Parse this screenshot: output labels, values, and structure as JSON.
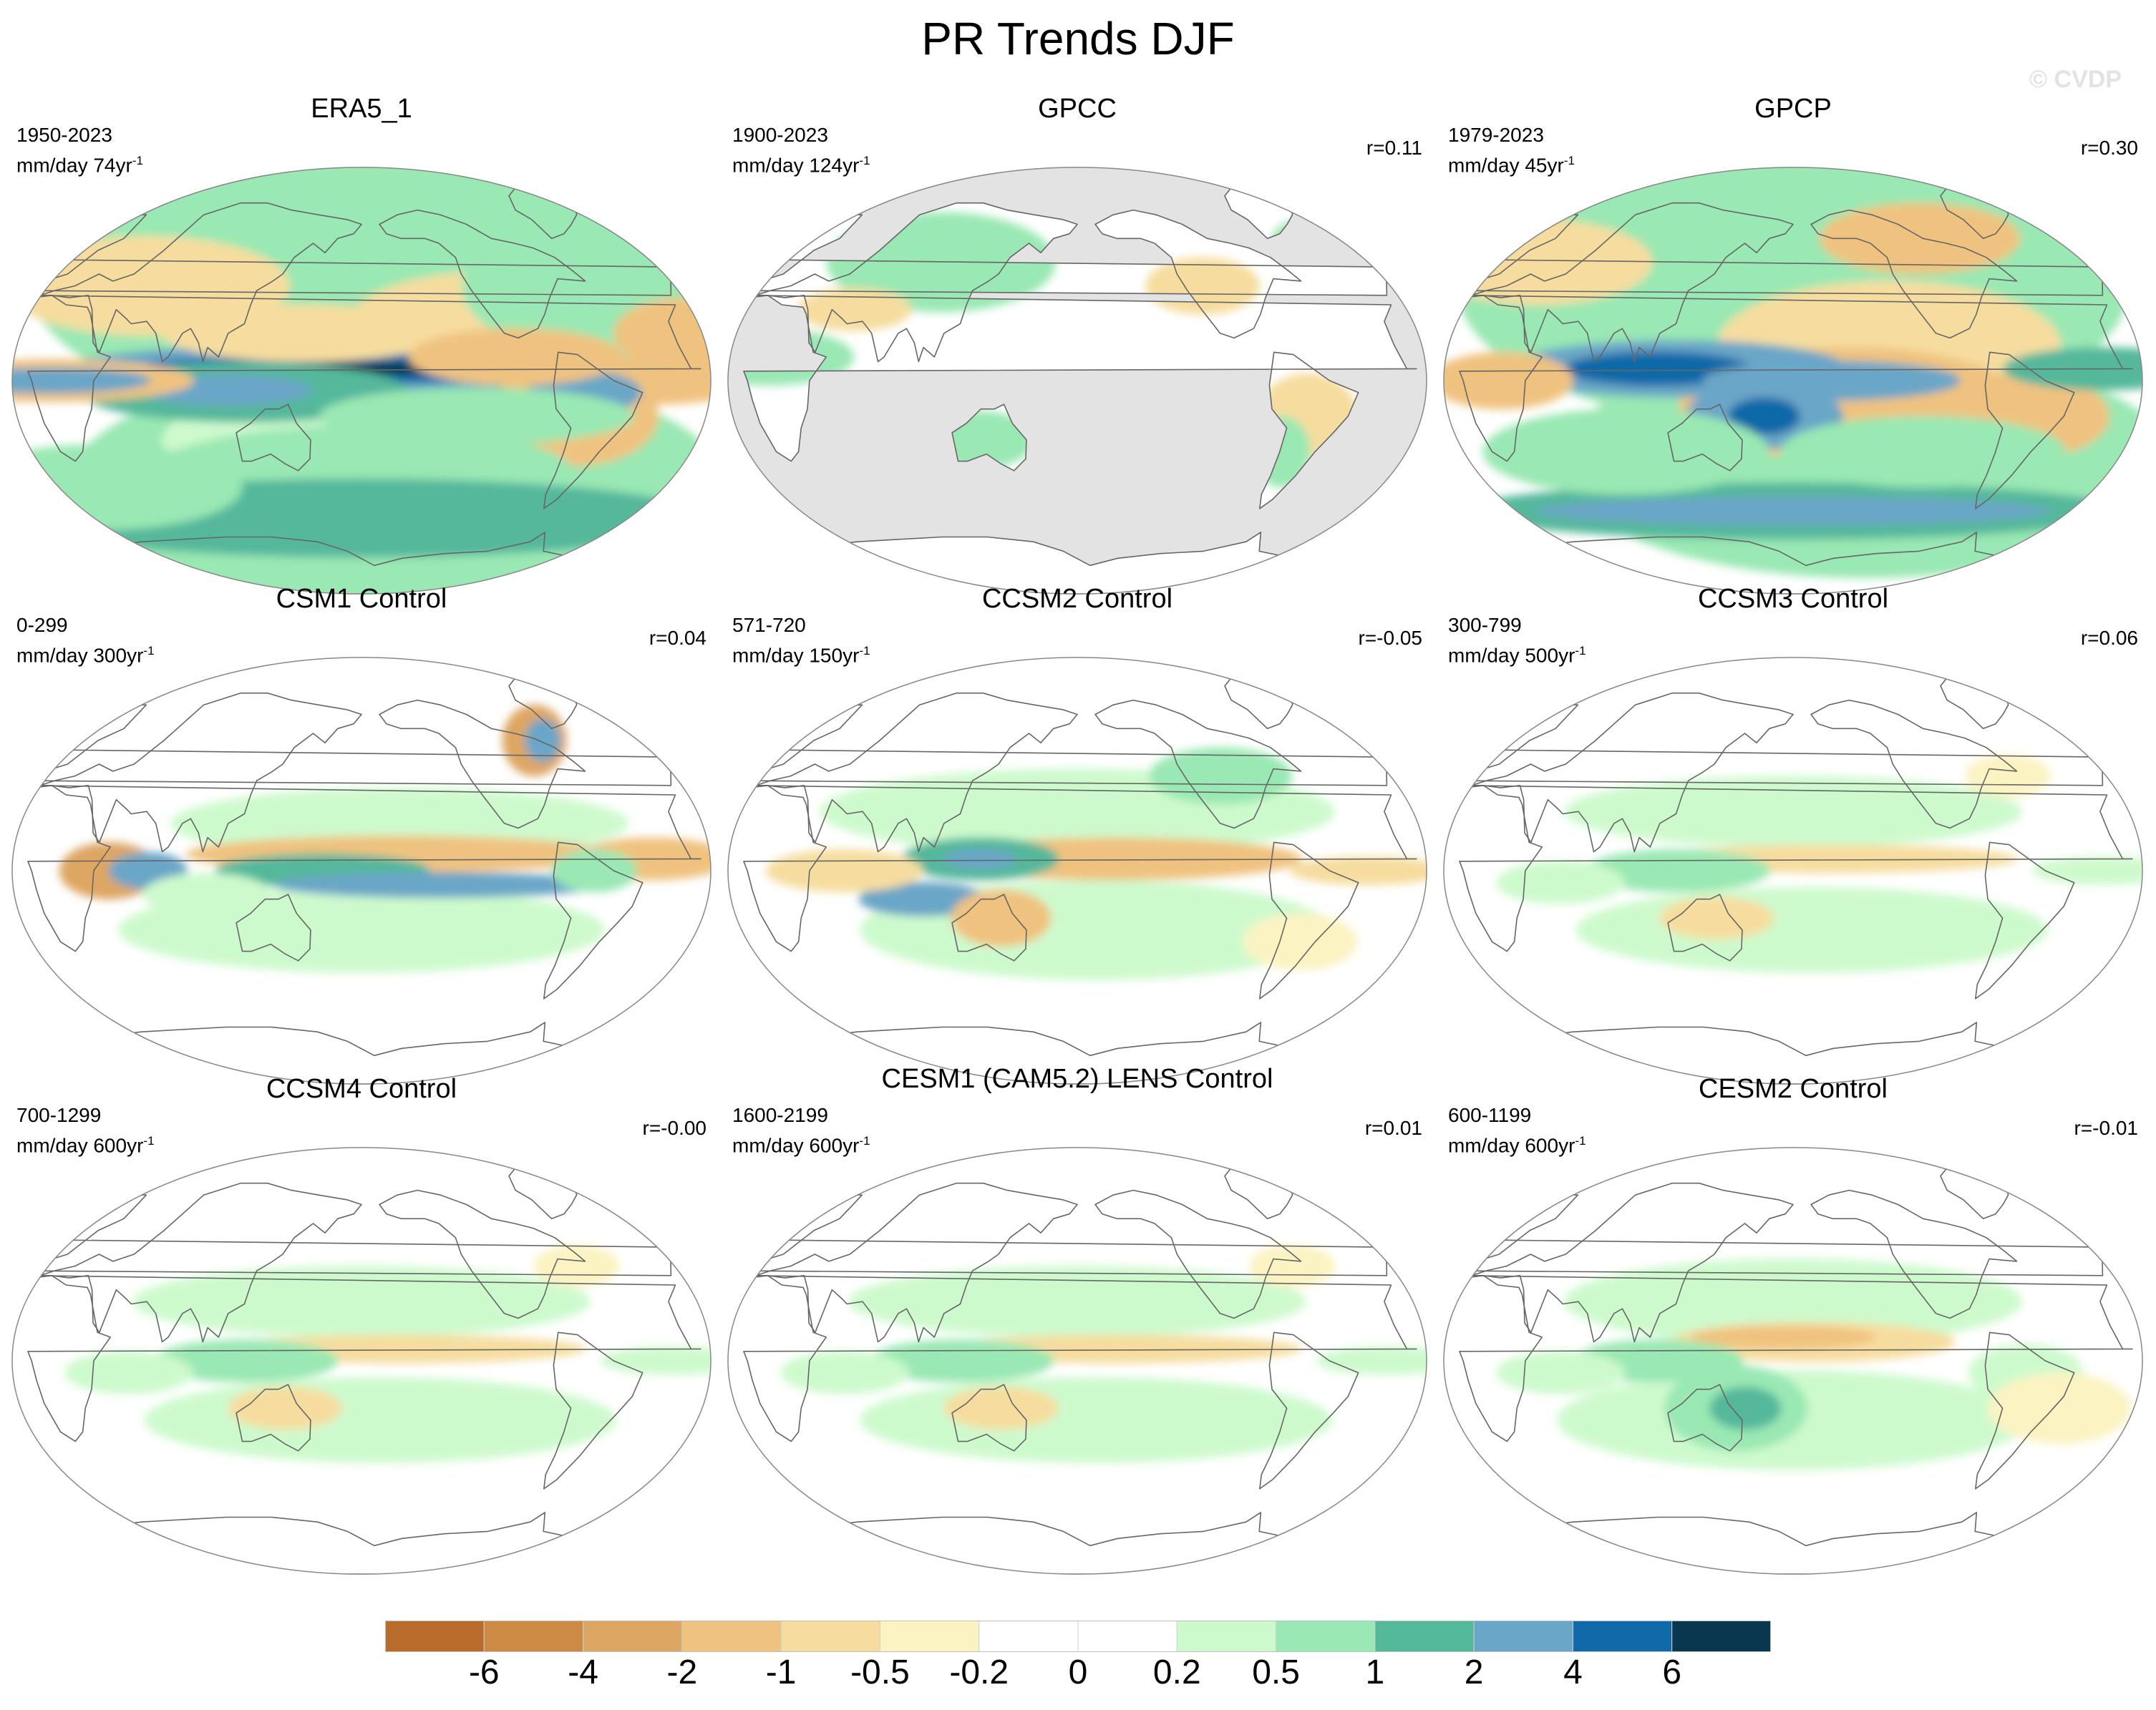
{
  "title": "PR Trends DJF",
  "watermark": "© CVDP",
  "panels": [
    {
      "title": "ERA5_1",
      "years": "1950-2023",
      "units": "mm/day 74yr",
      "units_exp": "-1",
      "r": "",
      "style": "rich-pattern",
      "land_mask": false
    },
    {
      "title": "GPCC",
      "years": "1900-2023",
      "units": "mm/day 124yr",
      "units_exp": "-1",
      "r": "r=0.11",
      "style": "land-only",
      "land_mask": true
    },
    {
      "title": "GPCP",
      "years": "1979-2023",
      "units": "mm/day 45yr",
      "units_exp": "-1",
      "r": "r=0.30",
      "style": "gpcp-pattern",
      "land_mask": false
    },
    {
      "title": "CSM1 Control",
      "years": "0-299",
      "units": "mm/day 300yr",
      "units_exp": "-1",
      "r": "r=0.04",
      "style": "csm1-pattern",
      "land_mask": false
    },
    {
      "title": "CCSM2 Control",
      "years": "571-720",
      "units": "mm/day 150yr",
      "units_exp": "-1",
      "r": "r=-0.05",
      "style": "ccsm2-pattern",
      "land_mask": false
    },
    {
      "title": "CCSM3 Control",
      "years": "300-799",
      "units": "mm/day 500yr",
      "units_exp": "-1",
      "r": "r=0.06",
      "style": "weak-pattern",
      "land_mask": false
    },
    {
      "title": "CCSM4 Control",
      "years": "700-1299",
      "units": "mm/day 600yr",
      "units_exp": "-1",
      "r": "r=-0.00",
      "style": "weak-pattern",
      "land_mask": false
    },
    {
      "title": "CESM1 (CAM5.2) LENS Control",
      "years": "1600-2199",
      "units": "mm/day 600yr",
      "units_exp": "-1",
      "r": "r=0.01",
      "style": "weak-pattern",
      "land_mask": false
    },
    {
      "title": "CESM2 Control",
      "years": "600-1199",
      "units": "mm/day 600yr",
      "units_exp": "-1",
      "r": "r=-0.01",
      "style": "cesm2-pattern",
      "land_mask": false
    }
  ],
  "colorbar": {
    "colors": [
      "#b86b2a",
      "#cc8a45",
      "#dea663",
      "#f0c27f",
      "#f6dd9f",
      "#fcf3c3",
      "#ffffff",
      "#ffffff",
      "#cdfacd",
      "#9ae8b3",
      "#54b89b",
      "#6aa6c7",
      "#1069a8",
      "#08374f"
    ],
    "labels": [
      "-6",
      "-4",
      "-2",
      "-1",
      "-0.5",
      "-0.2",
      "0",
      "0.2",
      "0.5",
      "1",
      "2",
      "4",
      "6"
    ]
  },
  "colors": {
    "ocean_mask": "#e3e3e3",
    "coast": "#666666",
    "outline": "#888888"
  }
}
